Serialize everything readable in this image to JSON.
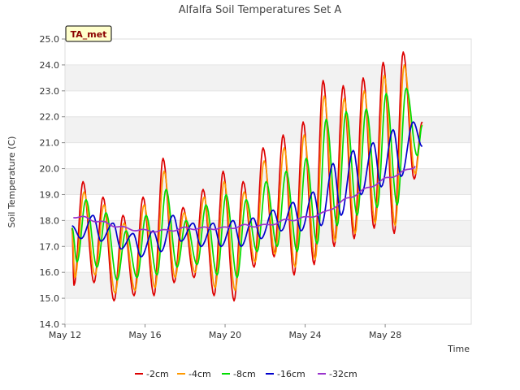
{
  "chart_data": {
    "type": "line",
    "title": "Alfalfa Soil Temperatures Set A",
    "xlabel": "Time",
    "ylabel": "Soil Temperature (C)",
    "badge": "TA_met",
    "ylim": [
      14.0,
      25.0
    ],
    "yticks": [
      "14.0",
      "15.0",
      "16.0",
      "17.0",
      "18.0",
      "19.0",
      "20.0",
      "21.0",
      "22.0",
      "23.0",
      "24.0",
      "25.0"
    ],
    "xlim": [
      0,
      20.3
    ],
    "xticks": [
      {
        "x": 0,
        "label": "May 12"
      },
      {
        "x": 4,
        "label": "May 16"
      },
      {
        "x": 8,
        "label": "May 20"
      },
      {
        "x": 12,
        "label": "May 24"
      },
      {
        "x": 16,
        "label": "May 28"
      }
    ],
    "grid": true,
    "legend_position": "bottom",
    "daily_extremes_note_x_unit": "days since May 12 00:00",
    "series": [
      {
        "name": "-2cm",
        "color": "#dd0000",
        "min": [
          [
            0.45,
            15.5
          ],
          [
            1.45,
            15.6
          ],
          [
            2.45,
            14.9
          ],
          [
            3.45,
            15.1
          ],
          [
            4.45,
            15.1
          ],
          [
            5.45,
            15.6
          ],
          [
            6.45,
            15.8
          ],
          [
            7.45,
            15.1
          ],
          [
            8.45,
            14.9
          ],
          [
            9.45,
            16.2
          ],
          [
            10.45,
            16.6
          ],
          [
            11.45,
            15.9
          ],
          [
            12.45,
            16.3
          ],
          [
            13.45,
            17.0
          ],
          [
            14.45,
            17.3
          ],
          [
            15.45,
            17.7
          ],
          [
            16.45,
            17.5
          ],
          [
            17.45,
            19.6
          ]
        ],
        "max": [
          [
            0.9,
            19.5
          ],
          [
            1.9,
            18.9
          ],
          [
            2.9,
            18.2
          ],
          [
            3.9,
            18.9
          ],
          [
            4.9,
            20.4
          ],
          [
            5.9,
            18.5
          ],
          [
            6.9,
            19.2
          ],
          [
            7.9,
            19.9
          ],
          [
            8.9,
            19.5
          ],
          [
            9.9,
            20.8
          ],
          [
            10.9,
            21.3
          ],
          [
            11.9,
            21.8
          ],
          [
            12.9,
            23.4
          ],
          [
            13.9,
            23.2
          ],
          [
            14.9,
            23.5
          ],
          [
            15.9,
            24.1
          ],
          [
            16.9,
            24.5
          ]
        ]
      },
      {
        "name": "-4cm",
        "color": "#ff9900",
        "min": [
          [
            0.5,
            15.8
          ],
          [
            1.5,
            15.9
          ],
          [
            2.5,
            15.2
          ],
          [
            3.5,
            15.3
          ],
          [
            4.5,
            15.4
          ],
          [
            5.5,
            15.8
          ],
          [
            6.5,
            16.0
          ],
          [
            7.5,
            15.4
          ],
          [
            8.5,
            15.3
          ],
          [
            9.5,
            16.4
          ],
          [
            10.5,
            16.7
          ],
          [
            11.5,
            16.2
          ],
          [
            12.5,
            16.5
          ],
          [
            13.5,
            17.2
          ],
          [
            14.5,
            17.5
          ],
          [
            15.5,
            17.9
          ],
          [
            16.5,
            17.8
          ],
          [
            17.5,
            19.8
          ]
        ],
        "max": [
          [
            0.95,
            19.1
          ],
          [
            1.95,
            18.6
          ],
          [
            2.95,
            17.9
          ],
          [
            3.95,
            18.6
          ],
          [
            4.95,
            19.9
          ],
          [
            5.95,
            18.3
          ],
          [
            6.95,
            18.9
          ],
          [
            7.95,
            19.5
          ],
          [
            8.95,
            19.1
          ],
          [
            9.95,
            20.3
          ],
          [
            10.95,
            20.8
          ],
          [
            11.95,
            21.3
          ],
          [
            12.95,
            22.8
          ],
          [
            13.95,
            22.7
          ],
          [
            14.95,
            23.0
          ],
          [
            15.95,
            23.6
          ],
          [
            16.95,
            24.0
          ]
        ]
      },
      {
        "name": "-8cm",
        "color": "#00dd00",
        "min": [
          [
            0.6,
            16.4
          ],
          [
            1.6,
            16.2
          ],
          [
            2.6,
            15.7
          ],
          [
            3.6,
            15.8
          ],
          [
            4.6,
            15.9
          ],
          [
            5.6,
            16.2
          ],
          [
            6.6,
            16.3
          ],
          [
            7.6,
            15.9
          ],
          [
            8.6,
            15.8
          ],
          [
            9.6,
            16.8
          ],
          [
            10.6,
            17.0
          ],
          [
            11.6,
            16.8
          ],
          [
            12.6,
            17.1
          ],
          [
            13.6,
            17.8
          ],
          [
            14.6,
            18.2
          ],
          [
            15.6,
            18.5
          ],
          [
            16.6,
            18.6
          ],
          [
            17.6,
            20.5
          ]
        ],
        "max": [
          [
            1.05,
            18.8
          ],
          [
            2.05,
            18.3
          ],
          [
            3.05,
            17.6
          ],
          [
            4.05,
            18.2
          ],
          [
            5.05,
            19.2
          ],
          [
            6.05,
            18.0
          ],
          [
            7.05,
            18.6
          ],
          [
            8.05,
            19.0
          ],
          [
            9.05,
            18.8
          ],
          [
            10.05,
            19.5
          ],
          [
            11.05,
            19.9
          ],
          [
            12.05,
            20.4
          ],
          [
            13.05,
            21.9
          ],
          [
            14.05,
            22.2
          ],
          [
            15.05,
            22.3
          ],
          [
            16.05,
            22.9
          ],
          [
            17.05,
            23.1
          ]
        ]
      },
      {
        "name": "-16cm",
        "color": "#0000cc",
        "min": [
          [
            0.8,
            17.3
          ],
          [
            1.8,
            17.2
          ],
          [
            2.8,
            16.9
          ],
          [
            3.8,
            16.6
          ],
          [
            4.8,
            16.8
          ],
          [
            5.8,
            17.2
          ],
          [
            6.8,
            17.0
          ],
          [
            7.8,
            17.0
          ],
          [
            8.8,
            17.0
          ],
          [
            9.8,
            17.3
          ],
          [
            10.8,
            17.6
          ],
          [
            11.8,
            17.6
          ],
          [
            12.8,
            17.8
          ],
          [
            13.8,
            18.2
          ],
          [
            14.8,
            19.0
          ],
          [
            15.8,
            19.3
          ],
          [
            16.8,
            19.7
          ]
        ],
        "max": [
          [
            1.4,
            18.2
          ],
          [
            2.4,
            17.9
          ],
          [
            3.4,
            17.5
          ],
          [
            4.4,
            17.6
          ],
          [
            5.4,
            18.2
          ],
          [
            6.4,
            17.9
          ],
          [
            7.4,
            17.9
          ],
          [
            8.4,
            18.0
          ],
          [
            9.4,
            18.1
          ],
          [
            10.4,
            18.4
          ],
          [
            11.4,
            18.7
          ],
          [
            12.4,
            19.1
          ],
          [
            13.4,
            20.2
          ],
          [
            14.4,
            20.7
          ],
          [
            15.4,
            21.0
          ],
          [
            16.4,
            21.5
          ],
          [
            17.4,
            21.8
          ]
        ]
      },
      {
        "name": "-32cm",
        "color": "#9933cc",
        "trend": [
          [
            0,
            18.2
          ],
          [
            1,
            18.1
          ],
          [
            2,
            17.9
          ],
          [
            3,
            17.7
          ],
          [
            4,
            17.6
          ],
          [
            5,
            17.6
          ],
          [
            6,
            17.7
          ],
          [
            7,
            17.7
          ],
          [
            8,
            17.7
          ],
          [
            9,
            17.8
          ],
          [
            10,
            17.8
          ],
          [
            11,
            18.0
          ],
          [
            12,
            18.1
          ],
          [
            13,
            18.3
          ],
          [
            14,
            18.8
          ],
          [
            15,
            19.2
          ],
          [
            16,
            19.6
          ],
          [
            17,
            19.9
          ],
          [
            17.5,
            20.1
          ]
        ]
      }
    ]
  }
}
